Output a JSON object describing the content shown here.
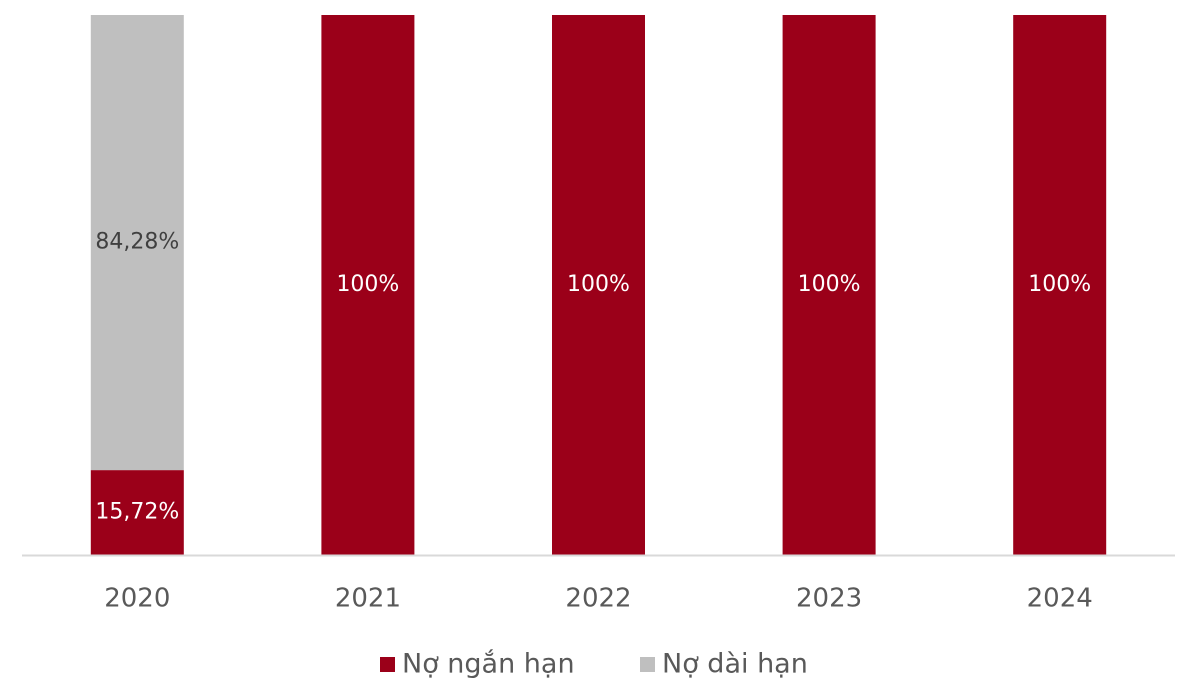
{
  "chart_data": {
    "type": "stacked_bar",
    "categories": [
      "2020",
      "2021",
      "2022",
      "2023",
      "2024"
    ],
    "series": [
      {
        "name": "Nợ ngắn hạn",
        "color": "#9b0019",
        "values": [
          15.72,
          100,
          100,
          100,
          100
        ],
        "value_labels": [
          "15,72%",
          "100%",
          "100%",
          "100%",
          "100%"
        ]
      },
      {
        "name": "Nợ dài hạn",
        "color": "#bfbfbf",
        "values": [
          84.28,
          0,
          0,
          0,
          0
        ],
        "value_labels": [
          "84,28%",
          null,
          null,
          null,
          null
        ]
      }
    ],
    "ylim": [
      0,
      100
    ],
    "legend": "bottom"
  }
}
